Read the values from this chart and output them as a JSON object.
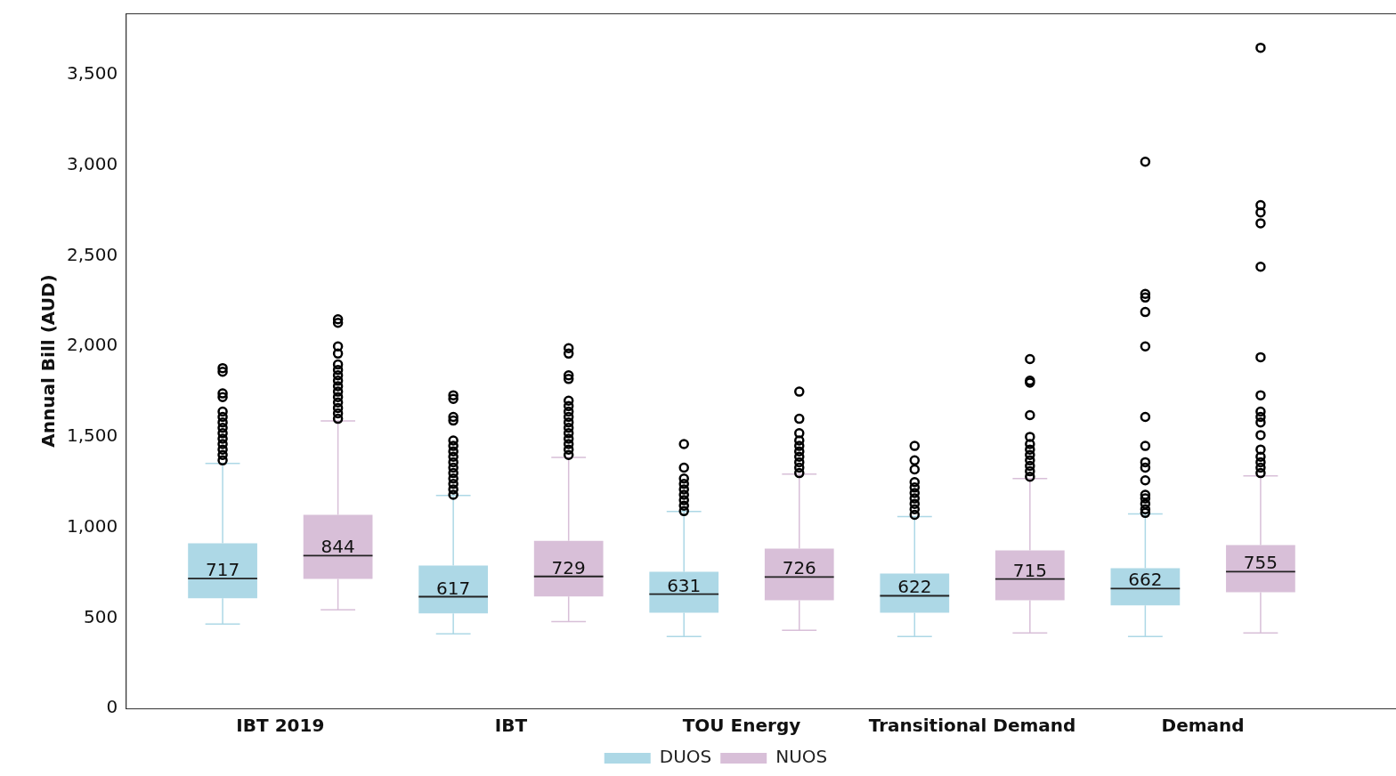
{
  "chart_data": {
    "type": "box",
    "ylabel": "Annual Bill (AUD)",
    "categories": [
      "IBT 2019",
      "IBT",
      "TOU Energy",
      "Transitional Demand",
      "Demand"
    ],
    "ylim": [
      0,
      3840
    ],
    "yticks": [
      0,
      {
        "value": 500,
        "label": "500"
      },
      {
        "value": 1000,
        "label": "1,000"
      },
      {
        "value": 1500,
        "label": "1,500"
      },
      {
        "value": 2000,
        "label": "2,000"
      },
      {
        "value": 2500,
        "label": "2,500"
      },
      {
        "value": 3000,
        "label": "3,000"
      },
      {
        "value": 3500,
        "label": "3,500"
      }
    ],
    "grid": false,
    "legend": "bottom",
    "series": [
      {
        "name": "DUOS",
        "color": "#add8e6",
        "value_labels": [
          "717",
          "617",
          "631",
          "622",
          "662"
        ],
        "boxes": [
          {
            "low": 466,
            "q1": 608,
            "median": 717,
            "q3": 912,
            "high": 1353,
            "outliers": [
              1370,
              1400,
              1430,
              1460,
              1490,
              1520,
              1550,
              1580,
              1610,
              1640,
              1720,
              1740,
              1860,
              1880
            ]
          },
          {
            "low": 412,
            "q1": 525,
            "median": 617,
            "q3": 789,
            "high": 1176,
            "outliers": [
              1180,
              1210,
              1240,
              1270,
              1300,
              1330,
              1360,
              1390,
              1420,
              1450,
              1480,
              1590,
              1610,
              1710,
              1730
            ]
          },
          {
            "low": 397,
            "q1": 529,
            "median": 631,
            "q3": 755,
            "high": 1088,
            "outliers": [
              1090,
              1120,
              1150,
              1180,
              1210,
              1240,
              1270,
              1330,
              1460
            ]
          },
          {
            "low": 397,
            "q1": 529,
            "median": 622,
            "q3": 745,
            "high": 1059,
            "outliers": [
              1070,
              1100,
              1130,
              1160,
              1190,
              1220,
              1250,
              1320,
              1370,
              1450
            ]
          },
          {
            "low": 397,
            "q1": 569,
            "median": 662,
            "q3": 775,
            "high": 1074,
            "outliers": [
              1080,
              1100,
              1130,
              1160,
              1180,
              1260,
              1330,
              1360,
              1450,
              1610,
              2000,
              2190,
              2270,
              2290,
              3020
            ]
          }
        ]
      },
      {
        "name": "NUOS",
        "color": "#d8bfd8",
        "value_labels": [
          "844",
          "729",
          "726",
          "715",
          "755"
        ],
        "boxes": [
          {
            "low": 544,
            "q1": 716,
            "median": 844,
            "q3": 1069,
            "high": 1588,
            "outliers": [
              1600,
              1630,
              1660,
              1690,
              1720,
              1750,
              1780,
              1810,
              1840,
              1870,
              1900,
              1960,
              2000,
              2130,
              2150
            ]
          },
          {
            "low": 480,
            "q1": 618,
            "median": 729,
            "q3": 926,
            "high": 1387,
            "outliers": [
              1400,
              1430,
              1460,
              1490,
              1520,
              1550,
              1580,
              1610,
              1640,
              1670,
              1700,
              1820,
              1840,
              1960,
              1990
            ]
          },
          {
            "low": 431,
            "q1": 598,
            "median": 726,
            "q3": 882,
            "high": 1294,
            "outliers": [
              1300,
              1330,
              1360,
              1390,
              1420,
              1450,
              1480,
              1520,
              1600,
              1750
            ]
          },
          {
            "low": 417,
            "q1": 598,
            "median": 715,
            "q3": 873,
            "high": 1270,
            "outliers": [
              1280,
              1310,
              1340,
              1370,
              1400,
              1430,
              1460,
              1500,
              1620,
              1800,
              1810,
              1930
            ]
          },
          {
            "low": 417,
            "q1": 642,
            "median": 755,
            "q3": 902,
            "high": 1284,
            "outliers": [
              1300,
              1330,
              1360,
              1390,
              1430,
              1510,
              1580,
              1610,
              1640,
              1730,
              1940,
              2440,
              2680,
              2740,
              2780,
              3650
            ]
          }
        ]
      }
    ]
  }
}
